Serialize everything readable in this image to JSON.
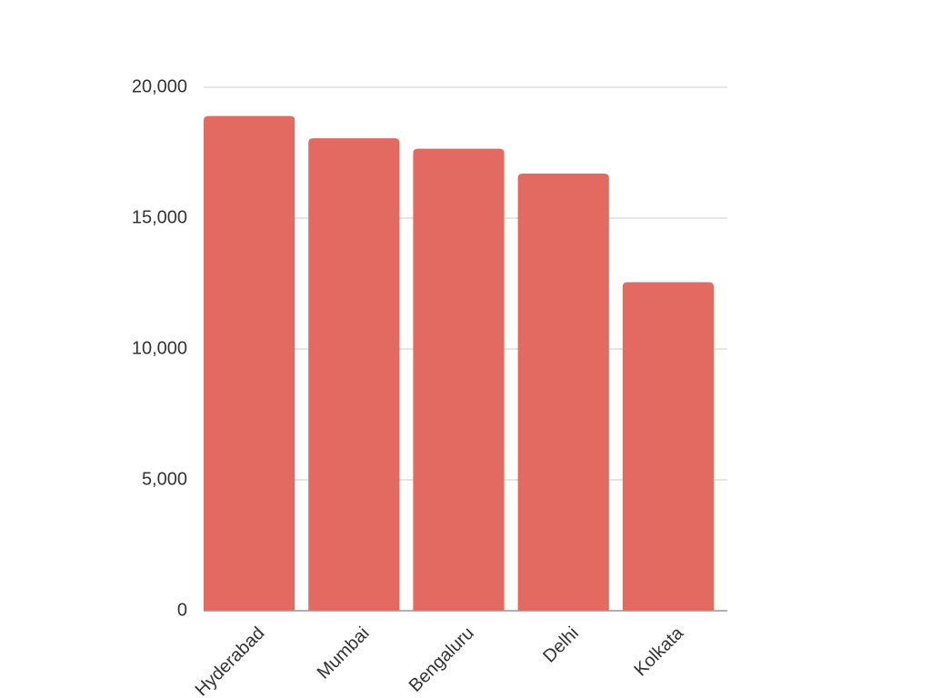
{
  "chart_data": {
    "type": "bar",
    "categories": [
      "Hyderabad",
      "Mumbai",
      "Bengaluru",
      "Delhi",
      "Kolkata"
    ],
    "values": [
      18900,
      18050,
      17650,
      16700,
      12550
    ],
    "color": "#e36a60",
    "ylim": [
      0,
      20000
    ],
    "yticks": [
      0,
      {
        "value": 5000,
        "label": "5,000"
      },
      {
        "value": 10000,
        "label": "10,000"
      },
      {
        "value": 15000,
        "label": "15,000"
      },
      {
        "value": 20000,
        "label": "20,000"
      }
    ],
    "grid": true
  }
}
